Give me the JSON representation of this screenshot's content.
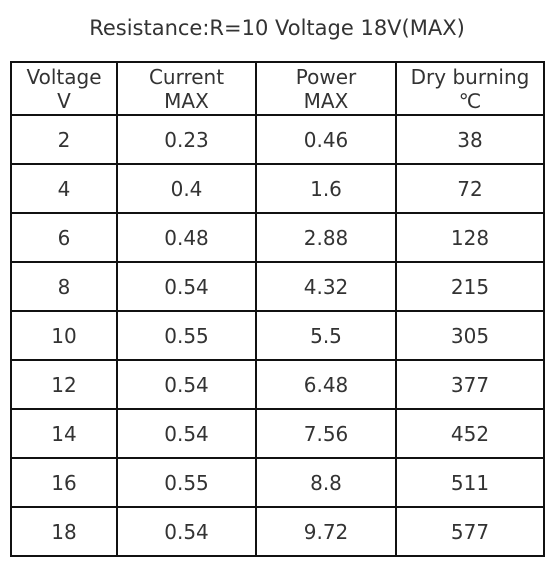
{
  "title": "Resistance:R=10  Voltage 18V(MAX)",
  "table": {
    "headers": [
      {
        "line1": "Voltage",
        "line2": "V"
      },
      {
        "line1": "Current",
        "line2": "MAX"
      },
      {
        "line1": "Power",
        "line2": "MAX"
      },
      {
        "line1": "Dry burning",
        "line2": "℃"
      }
    ],
    "rows": [
      [
        "2",
        "0.23",
        "0.46",
        "38"
      ],
      [
        "4",
        "0.4",
        "1.6",
        "72"
      ],
      [
        "6",
        "0.48",
        "2.88",
        "128"
      ],
      [
        "8",
        "0.54",
        "4.32",
        "215"
      ],
      [
        "10",
        "0.55",
        "5.5",
        "305"
      ],
      [
        "12",
        "0.54",
        "6.48",
        "377"
      ],
      [
        "14",
        "0.54",
        "7.56",
        "452"
      ],
      [
        "16",
        "0.55",
        "8.8",
        "511"
      ],
      [
        "18",
        "0.54",
        "9.72",
        "577"
      ]
    ]
  }
}
